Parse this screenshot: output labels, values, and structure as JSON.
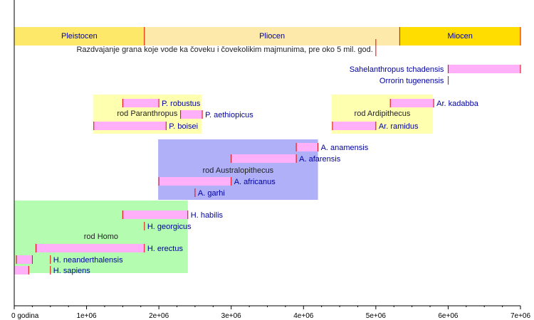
{
  "chart_data": {
    "type": "timeline",
    "xlim": [
      0,
      7000000
    ],
    "xlabel_origin": "0  godina",
    "ticks": [
      "1e+06",
      "2e+06",
      "3e+06",
      "4e+06",
      "5e+06",
      "6e+06",
      "7e+06"
    ],
    "tick_values": [
      1000000,
      2000000,
      3000000,
      4000000,
      5000000,
      6000000,
      7000000
    ],
    "minor_tick_step": 250000,
    "epochs": [
      {
        "name": "Pleistocen",
        "start": 0,
        "end": 1800000,
        "color": "#fde86a"
      },
      {
        "name": "Pliocen",
        "start": 1800000,
        "end": 5330000,
        "color": "#fde9aa"
      },
      {
        "name": "Miocen",
        "start": 5330000,
        "end": 7000000,
        "color": "#ffdd00"
      }
    ],
    "split_annotation": {
      "text": "Razdvajanje grana koje vode ka čoveku i čovekolikim majmunima, pre oko 5 mil. god.",
      "value": 5000000
    },
    "groups": [
      {
        "name": "rod Paranthropus",
        "start": 1090000,
        "end": 2590000,
        "color": "#ffffb0"
      },
      {
        "name": "rod Ardipithecus",
        "start": 4390000,
        "end": 5790000,
        "color": "#ffffb0"
      },
      {
        "name": "rod Australopithecus",
        "start": 1990000,
        "end": 4200000,
        "color": "#b0b0f8"
      },
      {
        "name": "rod Homo",
        "start": 0,
        "end": 2400000,
        "color": "#b4fcb0"
      }
    ],
    "species": [
      {
        "name": "Sahelanthropus tchadensis",
        "start": 6000000,
        "end": 7000000,
        "label_side": "left"
      },
      {
        "name": "Orrorin tugenensis",
        "start": 6000000,
        "end": 6000000,
        "label_side": "left"
      },
      {
        "name": "P. robustus",
        "start": 1500000,
        "end": 2000000,
        "label_side": "right"
      },
      {
        "name": "P. aethiopicus",
        "start": 2300000,
        "end": 2600000,
        "label_side": "right"
      },
      {
        "name": "P. boisei",
        "start": 1100000,
        "end": 2100000,
        "label_side": "right"
      },
      {
        "name": "Ar. kadabba",
        "start": 5200000,
        "end": 5800000,
        "label_side": "right"
      },
      {
        "name": "Ar. ramidus",
        "start": 4400000,
        "end": 5000000,
        "label_side": "right"
      },
      {
        "name": "A. anamensis",
        "start": 3900000,
        "end": 4200000,
        "label_side": "right"
      },
      {
        "name": "A. afarensis",
        "start": 3000000,
        "end": 3900000,
        "label_side": "right"
      },
      {
        "name": "A. africanus",
        "start": 2000000,
        "end": 3000000,
        "label_side": "right"
      },
      {
        "name": "A. garhi",
        "start": 2500000,
        "end": 2500000,
        "label_side": "right"
      },
      {
        "name": "H. habilis",
        "start": 1500000,
        "end": 2400000,
        "label_side": "right"
      },
      {
        "name": "H. georgicus",
        "start": 1800000,
        "end": 1800000,
        "label_side": "right"
      },
      {
        "name": "H. erectus",
        "start": 300000,
        "end": 1800000,
        "label_side": "right"
      },
      {
        "name": "H. neanderthalensis",
        "start": 30000,
        "end": 250000,
        "label_side": "right",
        "label_at": 500000
      },
      {
        "name": "H. sapiens",
        "start": 0,
        "end": 200000,
        "label_side": "right",
        "label_at": 500000
      }
    ],
    "bar_color": "#ffb0f8",
    "marker_color": "#e00000"
  }
}
